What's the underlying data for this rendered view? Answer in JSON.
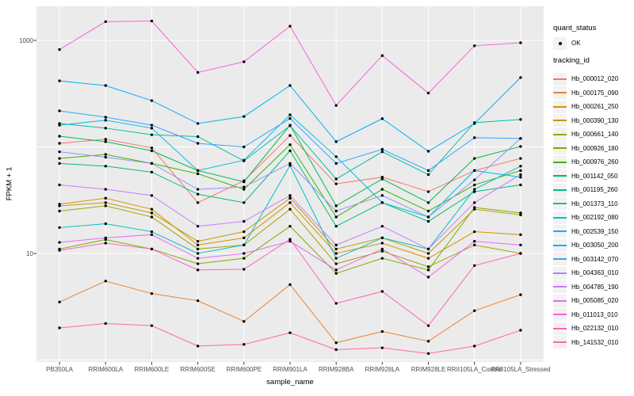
{
  "axes": {
    "x_title": "sample_name",
    "y_title": "FPKM + 1",
    "y_tick_labels": [
      "1000",
      "10"
    ]
  },
  "legend": {
    "quant_status": {
      "title": "quant_status",
      "items": [
        {
          "label": "OK",
          "marker": "filled-black-dot"
        }
      ]
    },
    "tracking_id": {
      "title": "tracking_id"
    }
  },
  "colors": {
    "panel_bg": "#EBEBEB",
    "grid": "#FFFFFF",
    "point": "#000000",
    "axis_text": "#4D4D4D",
    "legend_key_bg": "#F2F2F2",
    "background": "#FFFFFF"
  },
  "chart_data": {
    "type": "line",
    "title": "",
    "xlabel": "sample_name",
    "ylabel": "FPKM + 1",
    "y_scale": "log10",
    "ylim": [
      1,
      2100
    ],
    "y_gridline_values": [
      1000,
      100,
      10,
      1
    ],
    "y_labeled_ticks": [
      1000,
      10
    ],
    "grid": true,
    "legend_position": "right",
    "point_marker": "black dot (quant_status = OK)",
    "categories": [
      "PB350LA",
      "RRIM600LA",
      "RRIM600LE",
      "RRIM600SE",
      "RRIM600PE",
      "RRIM901LA",
      "RRIM928BA",
      "RRIM928LA",
      "RRIM928LE",
      "RRII105LA_Control",
      "RRII105LA_Stressed"
    ],
    "series": [
      {
        "name": "Hb_000012_020",
        "color": "#F8766D",
        "values": [
          108,
          118,
          98,
          30,
          48,
          128,
          45,
          52,
          38,
          60,
          78
        ]
      },
      {
        "name": "Hb_000175_090",
        "color": "#EA8331",
        "values": [
          3.5,
          5.5,
          4.2,
          3.6,
          2.3,
          5.1,
          1.45,
          1.85,
          1.5,
          2.9,
          4.1
        ]
      },
      {
        "name": "Hb_000261_250",
        "color": "#D89000",
        "values": [
          29,
          33,
          26,
          12,
          14,
          30,
          10,
          12.5,
          9,
          16,
          15
        ]
      },
      {
        "name": "Hb_000390_130",
        "color": "#C09B00",
        "values": [
          28,
          30,
          24,
          13,
          16,
          33,
          11,
          14,
          10,
          26,
          23
        ]
      },
      {
        "name": "Hb_000661_140",
        "color": "#A3A500",
        "values": [
          25,
          28,
          22,
          11,
          12,
          26,
          8,
          10.5,
          7.5,
          12,
          10
        ]
      },
      {
        "name": "Hb_000926_180",
        "color": "#7CAE00",
        "values": [
          11,
          13.5,
          11,
          8,
          9,
          18,
          6.5,
          9,
          7,
          27,
          24
        ]
      },
      {
        "name": "Hb_000976_260",
        "color": "#39B600",
        "values": [
          78,
          85,
          70,
          56,
          40,
          105,
          22,
          40,
          25,
          44,
          60
        ]
      },
      {
        "name": "Hb_001142_050",
        "color": "#00BB4E",
        "values": [
          126,
          112,
          92,
          60,
          47,
          160,
          28,
          50,
          30,
          78,
          101
        ]
      },
      {
        "name": "Hb_001195_260",
        "color": "#00BF7D",
        "values": [
          70,
          66,
          58,
          36,
          30,
          92,
          18,
          30,
          20,
          38,
          44
        ]
      },
      {
        "name": "Hb_001373_110",
        "color": "#00C1A3",
        "values": [
          166,
          150,
          130,
          125,
          74,
          158,
          50,
          90,
          55,
          169,
          181
        ]
      },
      {
        "name": "Hb_002192_080",
        "color": "#00BFC4",
        "values": [
          17.5,
          19,
          16,
          10,
          12,
          67,
          9,
          14,
          11,
          40,
          66
        ]
      },
      {
        "name": "Hb_002539_150",
        "color": "#00BAE0",
        "values": [
          160,
          178,
          150,
          60,
          75,
          200,
          81,
          30,
          22,
          60,
          52
        ]
      },
      {
        "name": "Hb_003050_200",
        "color": "#00B0F6",
        "values": [
          417,
          377,
          272,
          166,
          193,
          377,
          112,
          184,
          91,
          166,
          448
        ]
      },
      {
        "name": "Hb_003142_070",
        "color": "#35A2FF",
        "values": [
          218,
          190,
          160,
          108,
          100,
          185,
          70,
          95,
          60,
          122,
          120
        ]
      },
      {
        "name": "Hb_004363_010",
        "color": "#9590FF",
        "values": [
          90,
          80,
          70,
          40,
          42,
          70,
          25,
          35,
          22,
          49,
          120
        ]
      },
      {
        "name": "Hb_004785_190",
        "color": "#C77CFF",
        "values": [
          44,
          40,
          35,
          18,
          20,
          35,
          12,
          18,
          11,
          30,
          55
        ]
      },
      {
        "name": "Hb_005085_020",
        "color": "#E76BF3",
        "values": [
          12.7,
          14,
          15,
          9,
          10,
          13,
          7,
          11,
          6,
          13,
          12
        ]
      },
      {
        "name": "Hb_011013_010",
        "color": "#FA62DB",
        "values": [
          820,
          1500,
          1520,
          500,
          630,
          1360,
          245,
          720,
          320,
          890,
          950
        ]
      },
      {
        "name": "Hb_022132_010",
        "color": "#FF62BC",
        "values": [
          10.7,
          12.5,
          11,
          7,
          7.1,
          13.6,
          3.4,
          4.4,
          2.1,
          7.7,
          10
        ]
      },
      {
        "name": "Hb_141532_010",
        "color": "#FF6A98",
        "values": [
          2.0,
          2.2,
          2.1,
          1.35,
          1.4,
          1.8,
          1.25,
          1.3,
          1.15,
          1.35,
          1.9
        ]
      }
    ]
  }
}
